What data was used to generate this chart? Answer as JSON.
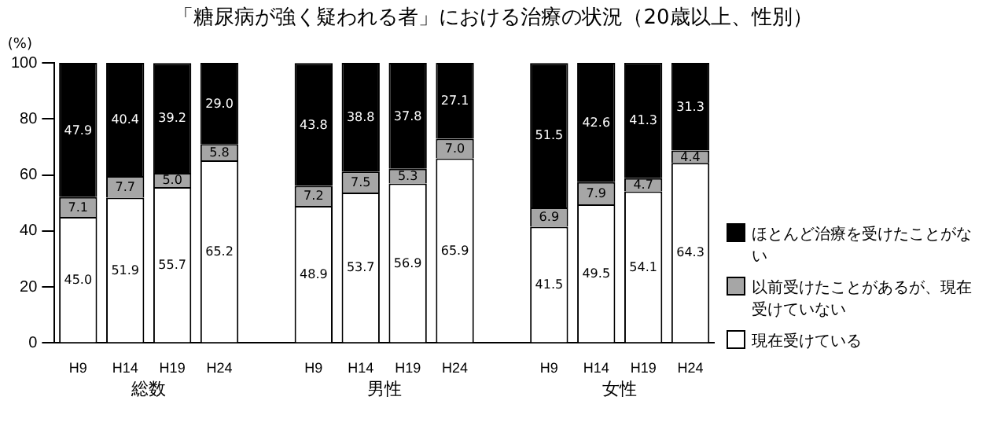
{
  "chart_data": {
    "type": "bar",
    "title": "「糖尿病が強く疑われる者」における治療の状況（20歳以上、性別）",
    "ylabel": "(%)",
    "categories": [
      "H9",
      "H14",
      "H19",
      "H24",
      null,
      "H9",
      "H14",
      "H19",
      "H24",
      null,
      "H9",
      "H14",
      "H19",
      "H24"
    ],
    "annotations": [
      "総数",
      "男性",
      "女性"
    ],
    "stacked": true,
    "ylim": [
      0,
      100
    ],
    "yticks": [
      0,
      20,
      40,
      60,
      80,
      100
    ],
    "grid": false,
    "legend": "right",
    "series": [
      {
        "name": "現在受けている",
        "color": "#ffffff",
        "values": [
          45.0,
          51.9,
          55.7,
          65.2,
          null,
          48.9,
          53.7,
          56.9,
          65.9,
          null,
          41.5,
          49.5,
          54.1,
          64.3
        ],
        "value_labels": [
          "45.0",
          "51.9",
          "55.7",
          "65.2",
          null,
          "48.9",
          "53.7",
          "56.9",
          "65.9",
          null,
          "41.5",
          "49.5",
          "54.1",
          "64.3"
        ]
      },
      {
        "name": "以前受けたことがあるが、現在受けていない",
        "color": "#a6a6a6",
        "values": [
          7.1,
          7.7,
          5.0,
          5.8,
          null,
          7.2,
          7.5,
          5.3,
          7.0,
          null,
          6.9,
          7.9,
          4.7,
          4.4
        ],
        "value_labels": [
          "7.1",
          "7.7",
          "5.0",
          "5.8",
          null,
          "7.2",
          "7.5",
          "5.3",
          "7.0",
          null,
          "6.9",
          "7.9",
          "4.7",
          "4.4"
        ]
      },
      {
        "name": "ほとんど治療を受けたことがない",
        "color": "#000000",
        "values": [
          47.9,
          40.4,
          39.2,
          29.0,
          null,
          43.8,
          38.8,
          37.8,
          27.1,
          null,
          51.5,
          42.6,
          41.3,
          31.3
        ],
        "value_labels": [
          "47.9",
          "40.4",
          "39.2",
          "29.0",
          null,
          "43.8",
          "38.8",
          "37.8",
          "27.1",
          null,
          "51.5",
          "42.6",
          "41.3",
          "31.3"
        ]
      }
    ]
  }
}
